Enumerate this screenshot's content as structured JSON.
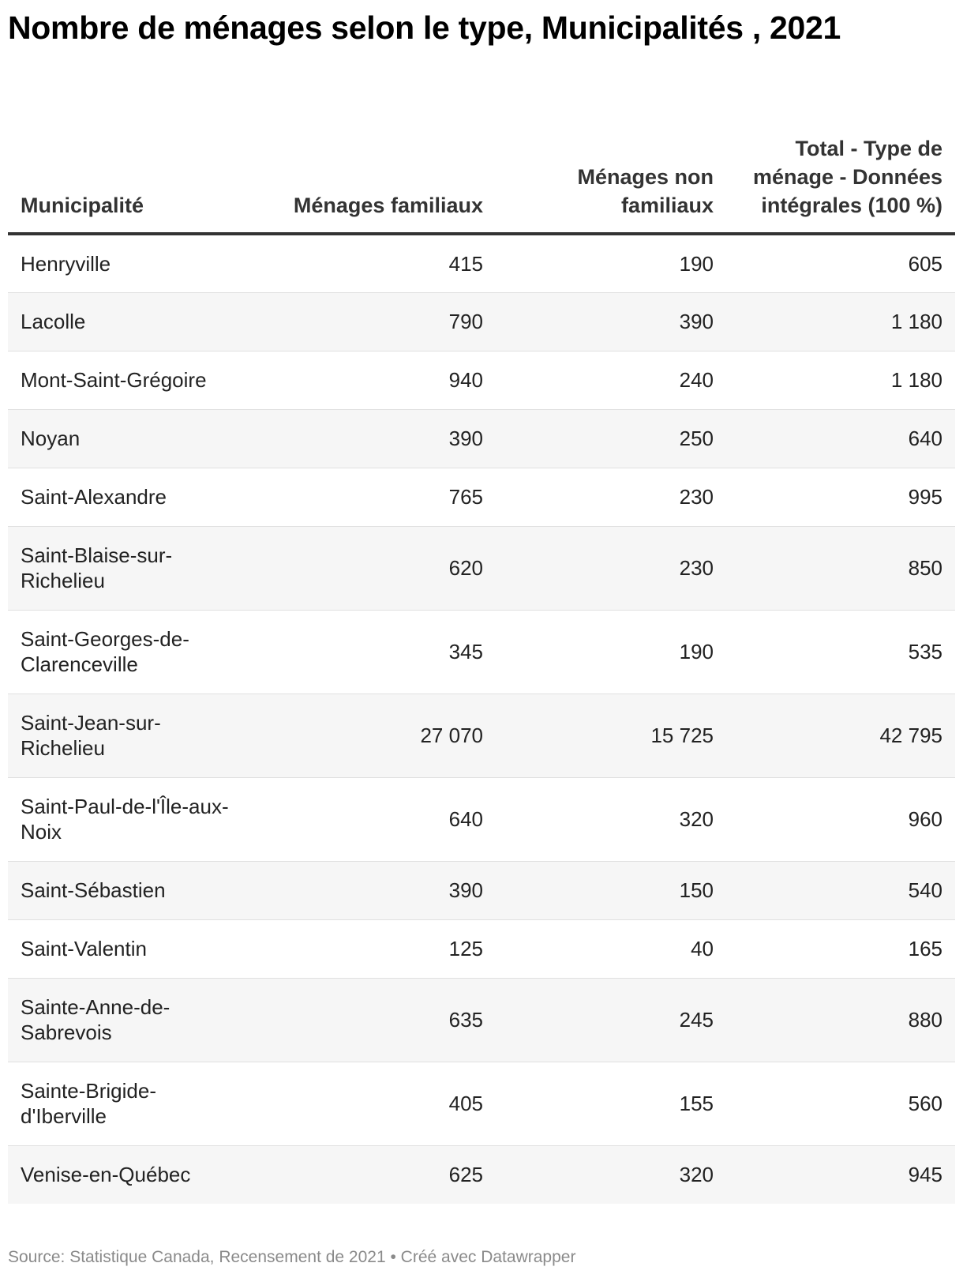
{
  "title": "Nombre de ménages selon le type, Municipalités , 2021",
  "source": "Source: Statistique Canada, Recensement de 2021 • Créé avec Datawrapper",
  "chart_data": {
    "type": "table",
    "title": "Nombre de ménages selon le type, Municipalités , 2021",
    "columns": [
      "Municipalité",
      "Ménages familiaux",
      "Ménages non familiaux",
      "Total - Type de ménage - Données intégrales (100 %)"
    ],
    "rows": [
      {
        "name": "Henryville",
        "values": [
          "415",
          "190",
          "605"
        ],
        "tall": false
      },
      {
        "name": "Lacolle",
        "values": [
          "790",
          "390",
          "1 180"
        ],
        "tall": false
      },
      {
        "name": "Mont-Saint-Grégoire",
        "values": [
          "940",
          "240",
          "1 180"
        ],
        "tall": false
      },
      {
        "name": "Noyan",
        "values": [
          "390",
          "250",
          "640"
        ],
        "tall": false
      },
      {
        "name": "Saint-Alexandre",
        "values": [
          "765",
          "230",
          "995"
        ],
        "tall": false
      },
      {
        "name": "Saint-Blaise-sur-Richelieu",
        "values": [
          "620",
          "230",
          "850"
        ],
        "tall": true
      },
      {
        "name": "Saint-Georges-de-Clarenceville",
        "values": [
          "345",
          "190",
          "535"
        ],
        "tall": true
      },
      {
        "name": "Saint-Jean-sur-Richelieu",
        "values": [
          "27 070",
          "15 725",
          "42 795"
        ],
        "tall": true
      },
      {
        "name": "Saint-Paul-de-l'Île-aux-Noix",
        "values": [
          "640",
          "320",
          "960"
        ],
        "tall": true
      },
      {
        "name": "Saint-Sébastien",
        "values": [
          "390",
          "150",
          "540"
        ],
        "tall": false
      },
      {
        "name": "Saint-Valentin",
        "values": [
          "125",
          "40",
          "165"
        ],
        "tall": false
      },
      {
        "name": "Sainte-Anne-de-Sabrevois",
        "values": [
          "635",
          "245",
          "880"
        ],
        "tall": true
      },
      {
        "name": "Sainte-Brigide-d'Iberville",
        "values": [
          "405",
          "155",
          "560"
        ],
        "tall": true
      },
      {
        "name": "Venise-en-Québec",
        "values": [
          "625",
          "320",
          "945"
        ],
        "tall": false
      }
    ]
  }
}
